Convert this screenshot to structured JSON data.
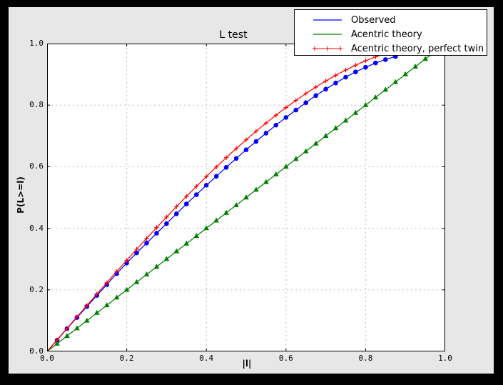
{
  "window": {
    "background": "#000000",
    "figure_background": "#e7e7e7",
    "plot_background": "#ffffff",
    "grid_color": "#bdbdbd",
    "frame_color": "#000000"
  },
  "chart_data": {
    "type": "line",
    "title": "L test",
    "xlabel": "|l|",
    "ylabel": "P(L>=l)",
    "xlim": [
      0.0,
      1.0
    ],
    "ylim": [
      0.0,
      1.0
    ],
    "xtick_labels": [
      "0.0",
      "0.2",
      "0.4",
      "0.6",
      "0.8",
      "1.0"
    ],
    "ytick_labels": [
      "0.0",
      "0.2",
      "0.4",
      "0.6",
      "0.8",
      "1.0"
    ],
    "grid": {
      "visible": true,
      "style": "dashed"
    },
    "legend": {
      "position": "upper right"
    },
    "series": [
      {
        "name": "Observed",
        "color": "#0000ff",
        "marker": "circle",
        "x": [
          0,
          0.025,
          0.05,
          0.075,
          0.1,
          0.125,
          0.15,
          0.175,
          0.2,
          0.225,
          0.25,
          0.275,
          0.3,
          0.325,
          0.35,
          0.375,
          0.4,
          0.425,
          0.45,
          0.475,
          0.5,
          0.525,
          0.55,
          0.575,
          0.6,
          0.625,
          0.65,
          0.675,
          0.7,
          0.725,
          0.75,
          0.775,
          0.8,
          0.825,
          0.85,
          0.875
        ],
        "y": [
          0,
          0.0365,
          0.074,
          0.11,
          0.146,
          0.182,
          0.217,
          0.253,
          0.287,
          0.32,
          0.352,
          0.384,
          0.415,
          0.447,
          0.479,
          0.509,
          0.54,
          0.569,
          0.598,
          0.627,
          0.655,
          0.682,
          0.709,
          0.735,
          0.76,
          0.784,
          0.808,
          0.831,
          0.852,
          0.872,
          0.891,
          0.908,
          0.923,
          0.937,
          0.948,
          0.958
        ]
      },
      {
        "name": "Acentric theory",
        "color": "#008000",
        "marker": "triangle-up",
        "x": [
          0,
          0.025,
          0.05,
          0.075,
          0.1,
          0.125,
          0.15,
          0.175,
          0.2,
          0.225,
          0.25,
          0.275,
          0.3,
          0.325,
          0.35,
          0.375,
          0.4,
          0.425,
          0.45,
          0.475,
          0.5,
          0.525,
          0.55,
          0.575,
          0.6,
          0.625,
          0.65,
          0.675,
          0.7,
          0.725,
          0.75,
          0.775,
          0.8,
          0.825,
          0.85,
          0.875,
          0.9,
          0.925,
          0.95,
          0.975,
          1.0
        ],
        "y": [
          0,
          0.025,
          0.05,
          0.075,
          0.1,
          0.125,
          0.15,
          0.175,
          0.2,
          0.225,
          0.25,
          0.275,
          0.3,
          0.325,
          0.35,
          0.375,
          0.4,
          0.425,
          0.45,
          0.475,
          0.5,
          0.525,
          0.55,
          0.575,
          0.6,
          0.625,
          0.65,
          0.675,
          0.7,
          0.725,
          0.75,
          0.775,
          0.8,
          0.825,
          0.85,
          0.875,
          0.9,
          0.925,
          0.95,
          0.975,
          1.0
        ]
      },
      {
        "name": "Acentric theory, perfect twin",
        "color": "#ff0000",
        "marker": "plus",
        "x": [
          0,
          0.025,
          0.05,
          0.075,
          0.1,
          0.125,
          0.15,
          0.175,
          0.2,
          0.225,
          0.25,
          0.275,
          0.3,
          0.325,
          0.35,
          0.375,
          0.4,
          0.425,
          0.45,
          0.475,
          0.5,
          0.525,
          0.55,
          0.575,
          0.6,
          0.625,
          0.65,
          0.675,
          0.7,
          0.725,
          0.75,
          0.775,
          0.8,
          0.825,
          0.85,
          0.875,
          0.9,
          0.925,
          0.95,
          0.975,
          1.0
        ],
        "y": [
          0,
          0.0375,
          0.0749,
          0.1123,
          0.1495,
          0.1865,
          0.2233,
          0.2598,
          0.296,
          0.3318,
          0.3672,
          0.4021,
          0.4365,
          0.4703,
          0.5036,
          0.5361,
          0.568,
          0.5991,
          0.6294,
          0.6589,
          0.6875,
          0.7152,
          0.7418,
          0.7674,
          0.792,
          0.8154,
          0.8377,
          0.8587,
          0.8785,
          0.897,
          0.9141,
          0.9298,
          0.944,
          0.9567,
          0.9679,
          0.9775,
          0.9855,
          0.9918,
          0.9963,
          0.9991,
          1.0
        ]
      }
    ]
  }
}
